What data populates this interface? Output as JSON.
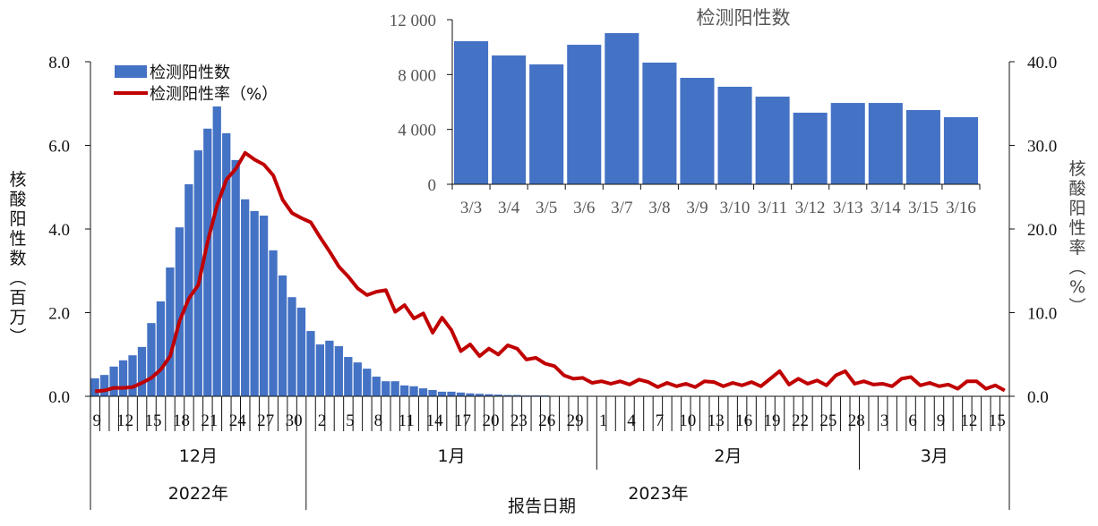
{
  "chart_data": [
    {
      "type": "bar+line",
      "title": "",
      "xlabel": "报告日期",
      "ylabel_left": "核酸阳性数（百万）",
      "ylabel_right": "核酸阳性率（%）",
      "ylim_left": [
        0,
        8
      ],
      "ylim_right": [
        0,
        40
      ],
      "yticks_left": [
        "0.0",
        "2.0",
        "4.0",
        "6.0",
        "8.0"
      ],
      "yticks_right": [
        "0.0",
        "10.0",
        "20.0",
        "30.0",
        "40.0"
      ],
      "legend": [
        "检测阳性数",
        "检测阳性率（%）"
      ],
      "legend_position": "upper-left",
      "grid": false,
      "x_start": "2022-12-09",
      "x_end": "2023-03-16",
      "x_tick_labels": [
        "9",
        "12",
        "15",
        "18",
        "21",
        "24",
        "27",
        "30",
        "2",
        "5",
        "8",
        "11",
        "14",
        "17",
        "20",
        "23",
        "26",
        "29",
        "1",
        "4",
        "7",
        "10",
        "13",
        "16",
        "19",
        "22",
        "25",
        "28",
        "3",
        "6",
        "9",
        "12",
        "15"
      ],
      "month_labels": [
        {
          "label": "12月",
          "start": 0,
          "end": 23
        },
        {
          "label": "1月",
          "start": 23,
          "end": 54
        },
        {
          "label": "2月",
          "start": 54,
          "end": 82
        },
        {
          "label": "3月",
          "start": 82,
          "end": 98
        }
      ],
      "year_labels": [
        {
          "label": "2022年",
          "start": 0,
          "end": 23
        },
        {
          "label": "2023年",
          "start": 23,
          "end": 98
        }
      ],
      "series": [
        {
          "name": "检测阳性数",
          "type": "bar",
          "axis": "left",
          "unit": "百万",
          "color": "#4472C4",
          "values": [
            0.43,
            0.51,
            0.71,
            0.86,
            0.98,
            1.18,
            1.75,
            2.27,
            3.08,
            4.04,
            5.07,
            5.88,
            6.4,
            6.93,
            6.29,
            5.65,
            4.71,
            4.43,
            4.32,
            3.49,
            2.89,
            2.37,
            2.12,
            1.56,
            1.24,
            1.33,
            1.2,
            0.94,
            0.81,
            0.66,
            0.47,
            0.36,
            0.36,
            0.26,
            0.24,
            0.19,
            0.15,
            0.11,
            0.11,
            0.09,
            0.07,
            0.06,
            0.05,
            0.04,
            0.03,
            0.03,
            0.02,
            0.02,
            0.02,
            0.01,
            0.01,
            0.01,
            0.01,
            0.01,
            0.01,
            0.01,
            0.01,
            0.01,
            0.01,
            0.01,
            0.01,
            0.01,
            0.01,
            0.01,
            0.01,
            0.01,
            0.01,
            0.01,
            0.01,
            0.01,
            0.01,
            0.01,
            0.01,
            0.01,
            0.01,
            0.01,
            0.01,
            0.01,
            0.01,
            0.01,
            0.01,
            0.01,
            0.01,
            0.01,
            0.01,
            0.01,
            0.01,
            0.01,
            0.01,
            0.01,
            0.01,
            0.01,
            0.01,
            0.01,
            0.01,
            0.01,
            0.01,
            0.01
          ]
        },
        {
          "name": "检测阳性率（%）",
          "type": "line",
          "axis": "right",
          "unit": "%",
          "color": "#C00000",
          "values": [
            0.6,
            0.7,
            1.0,
            1.0,
            1.1,
            1.6,
            2.2,
            3.2,
            4.8,
            9.0,
            11.7,
            13.3,
            18.5,
            22.8,
            25.9,
            27.2,
            29.1,
            28.3,
            27.7,
            26.4,
            23.5,
            21.9,
            21.3,
            20.8,
            19.0,
            17.3,
            15.5,
            14.3,
            12.9,
            12.1,
            12.5,
            12.7,
            10.1,
            10.9,
            9.3,
            9.9,
            7.6,
            9.4,
            7.9,
            5.4,
            6.2,
            4.8,
            5.7,
            5.0,
            6.1,
            5.7,
            4.4,
            4.6,
            3.9,
            3.6,
            2.5,
            2.1,
            2.2,
            1.6,
            1.8,
            1.5,
            1.8,
            1.4,
            2.0,
            1.7,
            1.1,
            1.6,
            1.2,
            1.5,
            1.1,
            1.8,
            1.7,
            1.2,
            1.6,
            1.3,
            1.7,
            1.2,
            2.1,
            3.0,
            1.4,
            2.1,
            1.5,
            1.9,
            1.3,
            2.5,
            3.0,
            1.5,
            1.8,
            1.4,
            1.5,
            1.2,
            2.1,
            2.3,
            1.3,
            1.6,
            1.2,
            1.4,
            0.9,
            1.8,
            1.8,
            0.9,
            1.3,
            0.7
          ]
        }
      ]
    },
    {
      "type": "bar",
      "title": "检测阳性数",
      "xlabel": "",
      "ylabel": "",
      "ylim": [
        0,
        12000
      ],
      "yticks": [
        "0",
        "4 000",
        "8 000",
        "12 000"
      ],
      "grid": false,
      "categories": [
        "3/3",
        "3/4",
        "3/5",
        "3/6",
        "3/7",
        "3/8",
        "3/9",
        "3/10",
        "3/11",
        "3/12",
        "3/13",
        "3/14",
        "3/15",
        "3/16"
      ],
      "values": [
        10430,
        9390,
        8740,
        10170,
        11020,
        8870,
        7760,
        7110,
        6390,
        5220,
        5930,
        5930,
        5410,
        4890
      ],
      "color": "#4472C4"
    }
  ]
}
